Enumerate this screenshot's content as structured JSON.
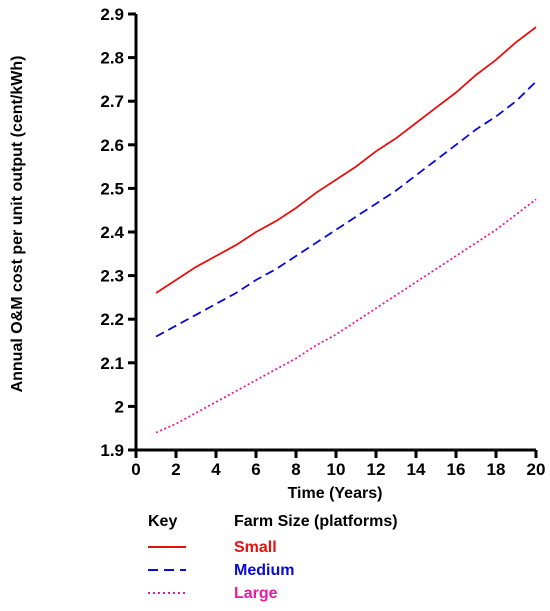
{
  "chart_data": {
    "type": "line",
    "title": "",
    "xlabel": "Time (Years)",
    "ylabel": "Annual O&M cost per unit output (cent/kWh)",
    "xlim": [
      0,
      20
    ],
    "ylim": [
      1.9,
      2.9
    ],
    "xticks": [
      0,
      2,
      4,
      6,
      8,
      10,
      12,
      14,
      16,
      18,
      20
    ],
    "xtick_labels": [
      "0",
      "2",
      "4",
      "6",
      "8",
      "10",
      "12",
      "14",
      "16",
      "18",
      "20"
    ],
    "yticks": [
      1.9,
      2.0,
      2.1,
      2.2,
      2.3,
      2.4,
      2.5,
      2.6,
      2.7,
      2.8,
      2.9
    ],
    "ytick_labels": [
      "1.9",
      "2",
      "2.1",
      "2.2",
      "2.3",
      "2.4",
      "2.5",
      "2.6",
      "2.7",
      "2.8",
      "2.9"
    ],
    "grid": false,
    "legend_position": "bottom",
    "x": [
      1,
      2,
      3,
      4,
      5,
      6,
      7,
      8,
      9,
      10,
      11,
      12,
      13,
      14,
      15,
      16,
      17,
      18,
      19,
      20
    ],
    "series": [
      {
        "name": "Small",
        "color": "#e8100e",
        "dash": "solid",
        "values": [
          2.26,
          2.29,
          2.32,
          2.345,
          2.37,
          2.4,
          2.425,
          2.455,
          2.49,
          2.52,
          2.55,
          2.585,
          2.615,
          2.65,
          2.685,
          2.72,
          2.76,
          2.795,
          2.835,
          2.87
        ]
      },
      {
        "name": "Medium",
        "color": "#0a0ad8",
        "dash": "dash",
        "values": [
          2.16,
          2.185,
          2.21,
          2.235,
          2.26,
          2.29,
          2.315,
          2.345,
          2.375,
          2.405,
          2.435,
          2.465,
          2.495,
          2.53,
          2.565,
          2.6,
          2.635,
          2.665,
          2.7,
          2.745
        ]
      },
      {
        "name": "Large",
        "color": "#e61ba0",
        "dash": "dot",
        "values": [
          1.94,
          1.96,
          1.985,
          2.01,
          2.035,
          2.06,
          2.085,
          2.11,
          2.14,
          2.165,
          2.195,
          2.225,
          2.255,
          2.285,
          2.315,
          2.345,
          2.375,
          2.405,
          2.44,
          2.475
        ]
      }
    ]
  },
  "legend": {
    "key_label": "Key",
    "heading": "Farm Size (platforms)",
    "items": [
      "Small",
      "Medium",
      "Large"
    ]
  }
}
